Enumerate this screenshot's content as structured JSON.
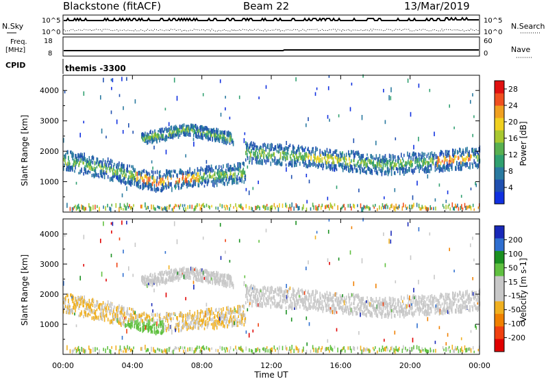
{
  "header": {
    "station": "Blackstone (fitACF)",
    "beam": "Beam 22",
    "date": "13/Mar/2019",
    "cpid_label": "CPID",
    "cpid_value": "themis -3300"
  },
  "noise_panel": {
    "left_label": "N.Sky",
    "right_label": "N.Search",
    "left_ticks": [
      "10^5",
      "10^0"
    ],
    "right_ticks": [
      "10^5",
      "10^0"
    ]
  },
  "freq_panel": {
    "left_label_1": "Freq.",
    "left_label_2": "[MHz]",
    "right_label": "Nave",
    "left_ticks": [
      "18",
      "8"
    ],
    "right_ticks": [
      "60",
      "0"
    ]
  },
  "colors": {
    "power_scale": [
      "#1030e0",
      "#2050b0",
      "#2a7aa0",
      "#30a070",
      "#58b050",
      "#a8c830",
      "#f0d020",
      "#f0a020",
      "#f05020",
      "#e01010"
    ],
    "velocity_scale": [
      "#1828b8",
      "#2f6fd0",
      "#1a9020",
      "#60c040",
      "#c8c8c8",
      "#c8c8c8",
      "#f0b020",
      "#f08000",
      "#f04010",
      "#e00000"
    ],
    "power_track": "#2c54b0",
    "velocity_track": "#c8c8c8"
  },
  "chart_data": [
    {
      "type": "heatmap",
      "title": "Power",
      "xlabel": "Time UT",
      "ylabel": "Slant Range [km]",
      "x_ticks": [
        "00:00",
        "04:00",
        "08:00",
        "12:00",
        "16:00",
        "20:00",
        "00:00"
      ],
      "y_ticks": [
        1000,
        2000,
        3000,
        4000
      ],
      "ylim": [
        0,
        4500
      ],
      "xlim_hours": [
        0,
        24
      ],
      "colorbar": {
        "label": "Power [dB]",
        "ticks": [
          "4",
          "8",
          "12",
          "16",
          "20",
          "24",
          "28"
        ],
        "range": [
          0,
          30
        ]
      },
      "echo_bands": [
        {
          "name": "upper arc",
          "t_start": 4.5,
          "t_end": 9.8,
          "range_km": [
            2400,
            2720,
            2400
          ]
        },
        {
          "name": "lower band",
          "t_start": 0.0,
          "t_end": 10.5,
          "range_km": [
            1700,
            1400,
            1000,
            1150,
            1300
          ]
        },
        {
          "name": "main band",
          "t_start": 10.5,
          "t_end": 24.0,
          "range_km": [
            1950,
            1850,
            1700,
            1550,
            1650,
            1800
          ]
        }
      ]
    },
    {
      "type": "heatmap",
      "title": "Velocity",
      "xlabel": "Time UT",
      "ylabel": "Slant Range [km]",
      "x_ticks": [
        "00:00",
        "04:00",
        "08:00",
        "12:00",
        "16:00",
        "20:00",
        "00:00"
      ],
      "y_ticks": [
        1000,
        2000,
        3000,
        4000
      ],
      "ylim": [
        0,
        4500
      ],
      "xlim_hours": [
        0,
        24
      ],
      "colorbar": {
        "label": "Velocity [m s-1]",
        "ticks": [
          "200",
          "100",
          "50",
          "15",
          "-15",
          "-50",
          "-100",
          "-200"
        ],
        "range": [
          -250,
          250
        ]
      }
    }
  ],
  "footer": {
    "time_label": "Time UT"
  }
}
